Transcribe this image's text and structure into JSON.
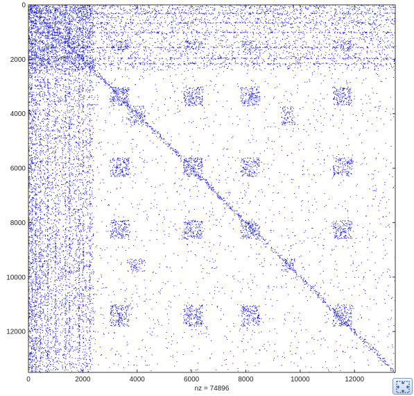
{
  "chart_data": {
    "type": "scatter",
    "title": "",
    "xlabel": "nz = 74896",
    "ylabel": "",
    "nnz_label": "nz = 74896",
    "xlim": [
      0,
      13500
    ],
    "ylim": [
      13500,
      0
    ],
    "y_axis_direction": "reversed",
    "xticks": [
      0,
      2000,
      4000,
      6000,
      8000,
      10000,
      12000
    ],
    "yticks": [
      0,
      2000,
      4000,
      6000,
      8000,
      10000,
      12000
    ],
    "grid": false,
    "legend": "none",
    "marker_color": "#0000ff",
    "dense_blocks": [
      {
        "rows": [
          3000,
          3700
        ],
        "cols": [
          3000,
          3700
        ],
        "density": 0.85
      },
      {
        "rows": [
          3000,
          3700
        ],
        "cols": [
          5700,
          6400
        ],
        "density": 0.85
      },
      {
        "rows": [
          3000,
          3700
        ],
        "cols": [
          7800,
          8500
        ],
        "density": 0.8
      },
      {
        "rows": [
          3000,
          3700
        ],
        "cols": [
          11200,
          11900
        ],
        "density": 0.8
      },
      {
        "rows": [
          5600,
          6300
        ],
        "cols": [
          3000,
          3700
        ],
        "density": 0.85
      },
      {
        "rows": [
          5600,
          6300
        ],
        "cols": [
          5700,
          6400
        ],
        "density": 0.85
      },
      {
        "rows": [
          5600,
          6300
        ],
        "cols": [
          7800,
          8500
        ],
        "density": 0.75
      },
      {
        "rows": [
          5600,
          6300
        ],
        "cols": [
          11200,
          11900
        ],
        "density": 0.7
      },
      {
        "rows": [
          7900,
          8600
        ],
        "cols": [
          3000,
          3700
        ],
        "density": 0.85
      },
      {
        "rows": [
          7900,
          8600
        ],
        "cols": [
          5700,
          6400
        ],
        "density": 0.8
      },
      {
        "rows": [
          7900,
          8600
        ],
        "cols": [
          7800,
          8500
        ],
        "density": 0.75
      },
      {
        "rows": [
          7900,
          8600
        ],
        "cols": [
          11200,
          11900
        ],
        "density": 0.75
      },
      {
        "rows": [
          11000,
          11800
        ],
        "cols": [
          3000,
          3700
        ],
        "density": 0.85
      },
      {
        "rows": [
          11000,
          11800
        ],
        "cols": [
          5700,
          6400
        ],
        "density": 0.8
      },
      {
        "rows": [
          11000,
          11800
        ],
        "cols": [
          7800,
          8500
        ],
        "density": 0.75
      },
      {
        "rows": [
          11000,
          11800
        ],
        "cols": [
          11200,
          11900
        ],
        "density": 0.75
      },
      {
        "rows": [
          3700,
          4400
        ],
        "cols": [
          3600,
          4300
        ],
        "density": 0.55
      },
      {
        "rows": [
          3700,
          4400
        ],
        "cols": [
          9300,
          9800
        ],
        "density": 0.6
      },
      {
        "rows": [
          9300,
          9800
        ],
        "cols": [
          3600,
          4300
        ],
        "density": 0.5
      },
      {
        "rows": [
          9300,
          9800
        ],
        "cols": [
          9300,
          9800
        ],
        "density": 0.6
      },
      {
        "rows": [
          1300,
          1700
        ],
        "cols": [
          3000,
          3700
        ],
        "density": 0.6
      },
      {
        "rows": [
          1300,
          1700
        ],
        "cols": [
          5700,
          6400
        ],
        "density": 0.6
      },
      {
        "rows": [
          1300,
          1700
        ],
        "cols": [
          7800,
          8500
        ],
        "density": 0.55
      },
      {
        "rows": [
          1300,
          1700
        ],
        "cols": [
          11200,
          11900
        ],
        "density": 0.55
      },
      {
        "rows": [
          0,
          2400
        ],
        "cols": [
          0,
          2400
        ],
        "density": 0.35
      }
    ],
    "dense_bands": [
      {
        "orientation": "horizontal",
        "range": [
          0,
          2400
        ],
        "density": 0.12
      },
      {
        "orientation": "vertical",
        "range": [
          0,
          2400
        ],
        "density": 0.18
      }
    ]
  },
  "ui": {
    "expand_icon": "expand-icon"
  }
}
